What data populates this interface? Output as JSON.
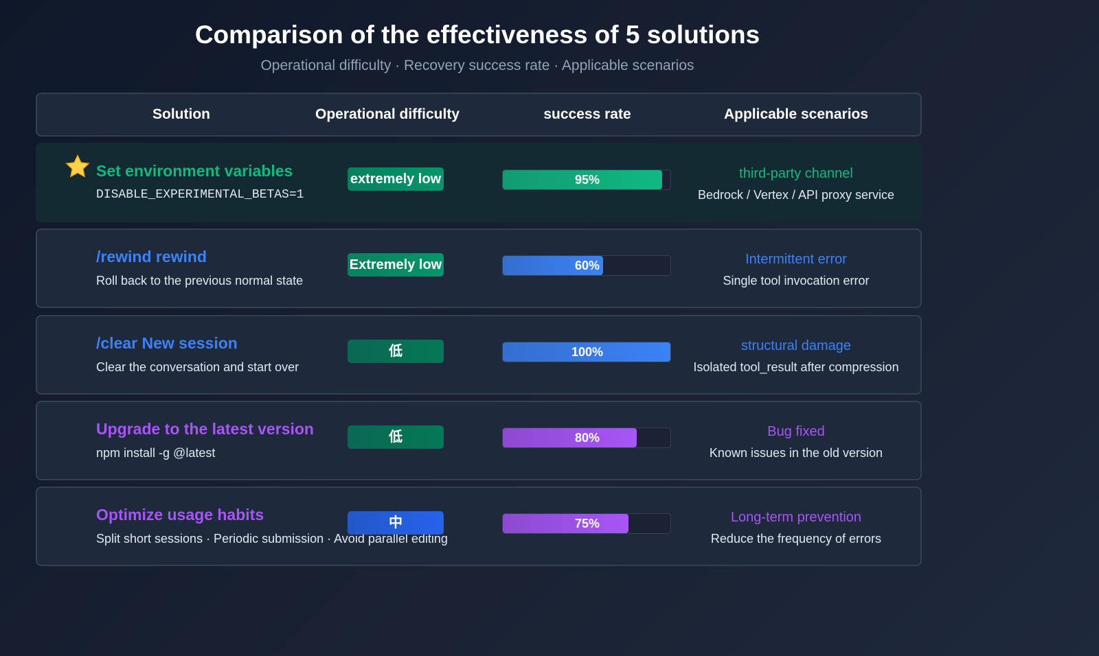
{
  "header": {
    "title": "Comparison of the effectiveness of 5 solutions",
    "subtitle": "Operational difficulty · Recovery success rate · Applicable scenarios"
  },
  "table": {
    "columns": [
      "Solution",
      "Operational difficulty",
      "success rate",
      "Applicable scenarios"
    ],
    "rate_range": [
      0,
      100
    ],
    "rows": [
      {
        "name": "Set environment variables",
        "detail": "DISABLE_EXPERIMENTAL_BETAS=1",
        "difficulty": "extremely low",
        "rate": {
          "value": 95,
          "label": "95%"
        },
        "scenario": "third-party channel",
        "scenario_detail": "Bedrock / Vertex / API proxy service",
        "color": "#10b981",
        "difficulty_color": "#059669",
        "featured": true
      },
      {
        "name": "/rewind rewind",
        "detail": "Roll back to the previous normal state",
        "difficulty": "Extremely low",
        "rate": {
          "value": 60,
          "label": "60%"
        },
        "scenario": "Intermittent error",
        "scenario_detail": "Single tool invocation error",
        "color": "#3b82f6",
        "difficulty_color": "#059669",
        "featured": false
      },
      {
        "name": "/clear New session",
        "detail": "Clear the conversation and start over",
        "difficulty": "低",
        "rate": {
          "value": 100,
          "label": "100%"
        },
        "scenario": "structural damage",
        "scenario_detail": "Isolated tool_result after compression",
        "color": "#3b82f6",
        "difficulty_color": "#047857",
        "featured": false
      },
      {
        "name": "Upgrade to the latest version",
        "detail": "npm install -g @latest",
        "difficulty": "低",
        "rate": {
          "value": 80,
          "label": "80%"
        },
        "scenario": "Bug fixed",
        "scenario_detail": "Known issues in the old version",
        "color": "#a855f7",
        "difficulty_color": "#047857",
        "featured": false
      },
      {
        "name": "Optimize usage habits",
        "detail": "Split short sessions · Periodic submission · Avoid parallel editing",
        "difficulty": "中",
        "rate": {
          "value": 75,
          "label": "75%"
        },
        "scenario": "Long-term prevention",
        "scenario_detail": "Reduce the frequency of errors",
        "color": "#a855f7",
        "difficulty_color": "#2563eb",
        "featured": false
      }
    ]
  }
}
